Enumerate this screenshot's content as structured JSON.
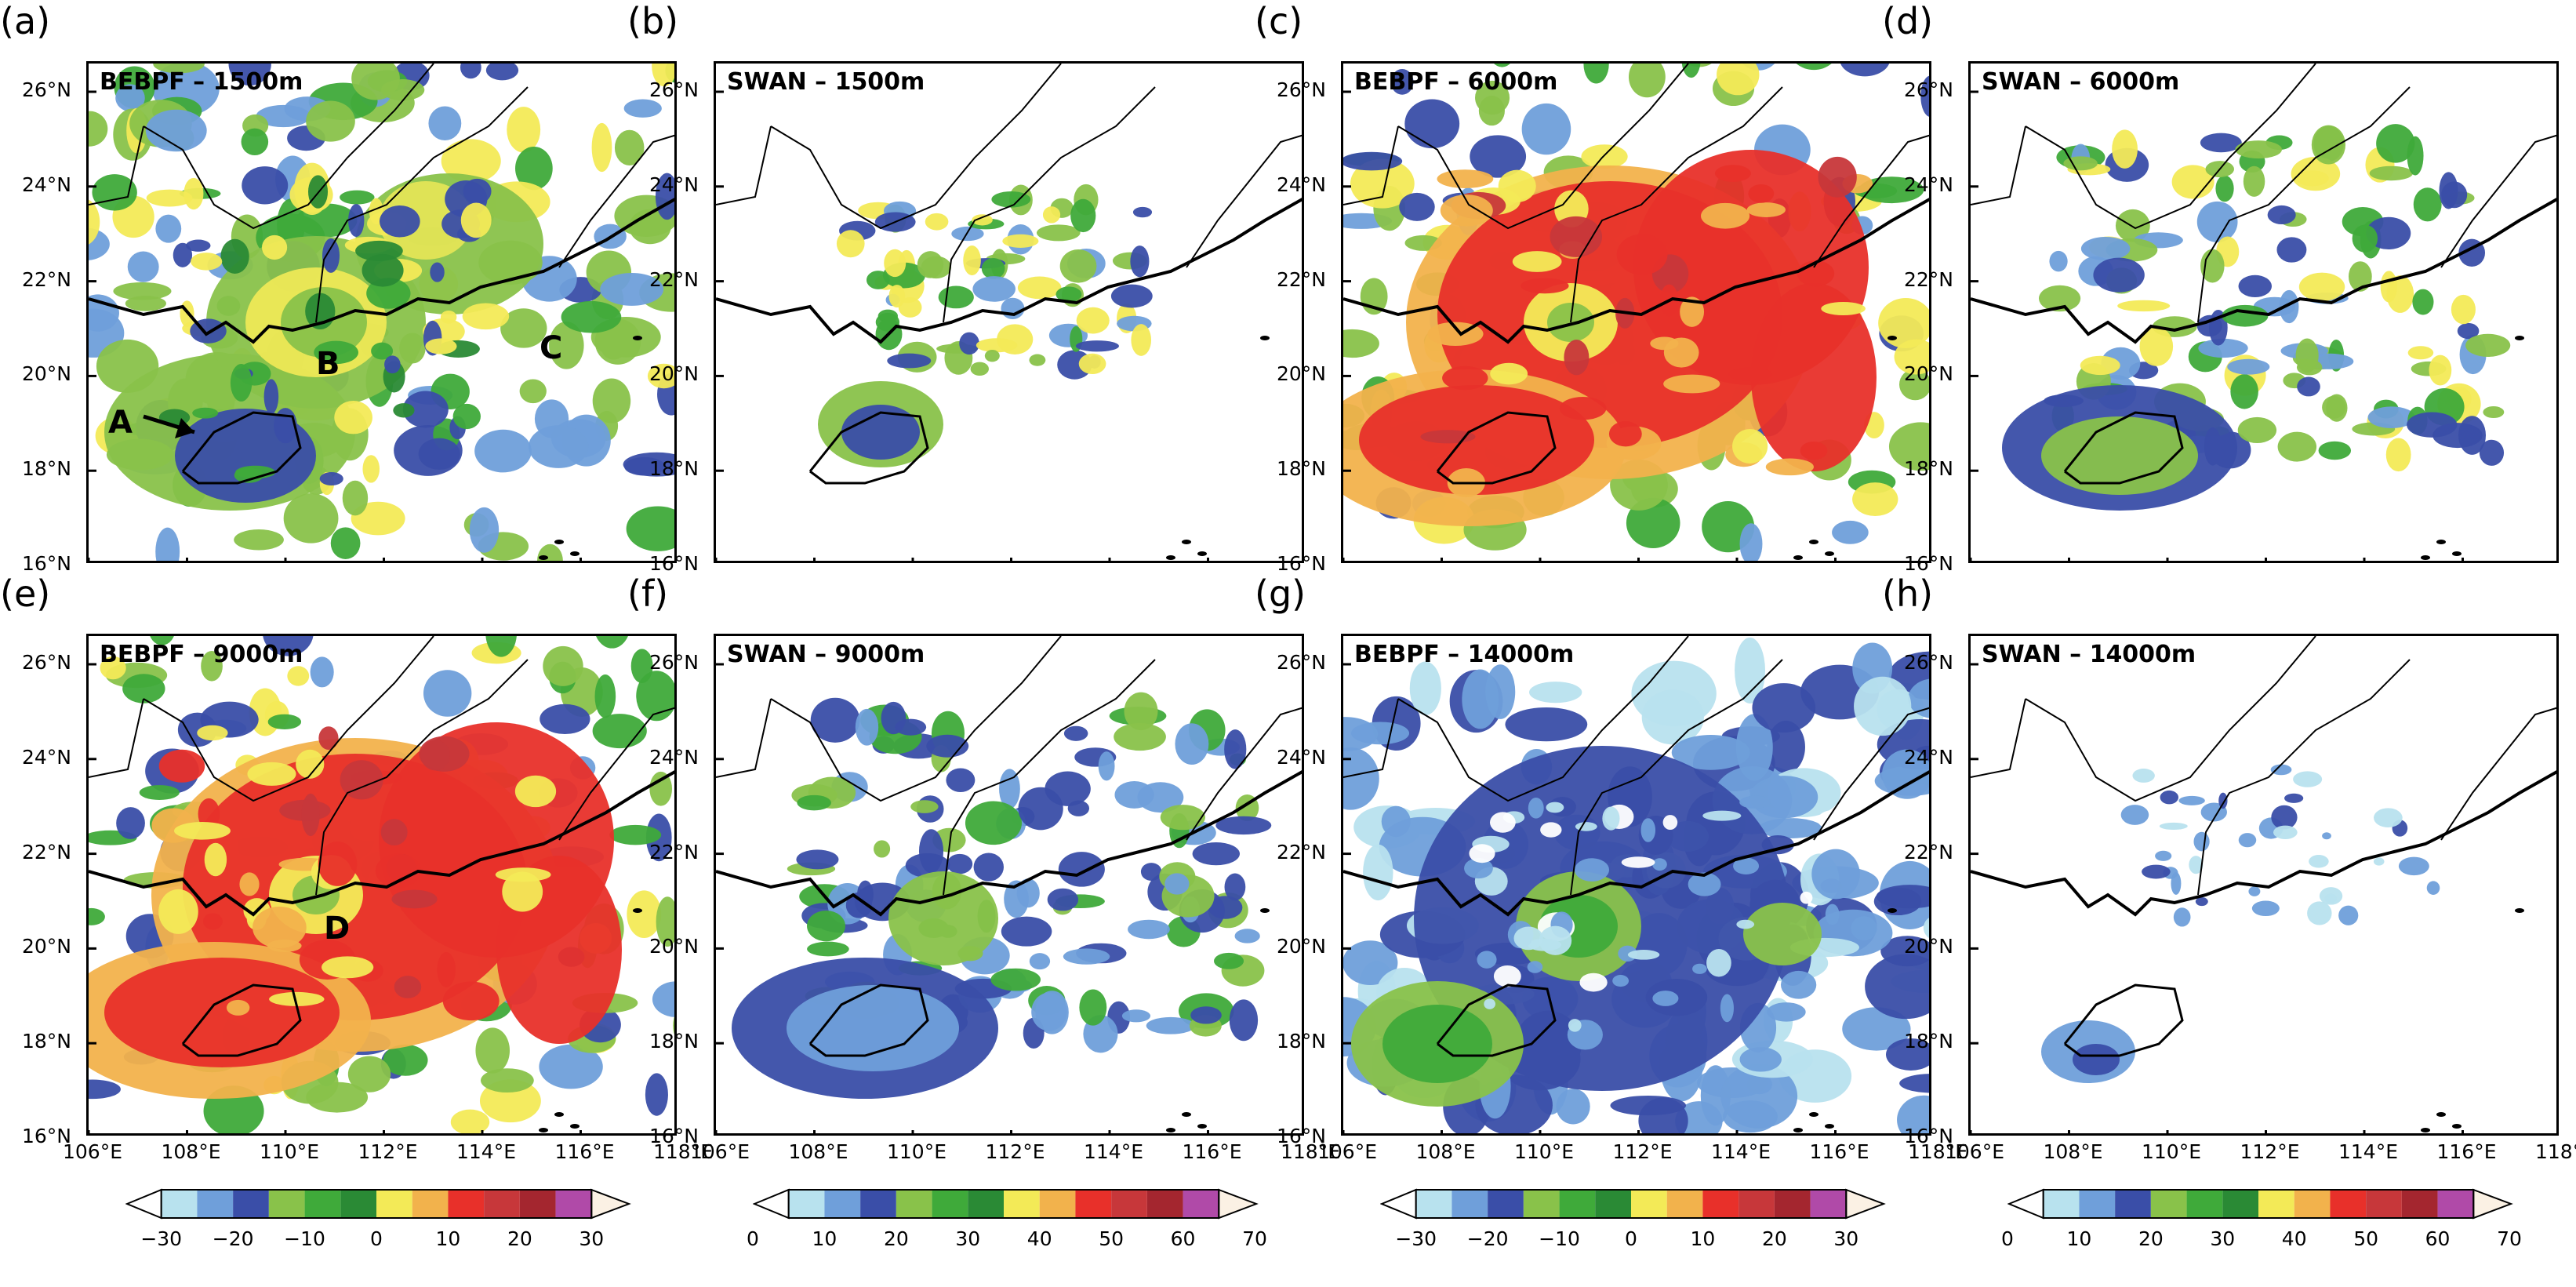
{
  "lat_labels": [
    "26°N",
    "24°N",
    "22°N",
    "20°N",
    "18°N",
    "16°N"
  ],
  "lon_labels": [
    "106°E",
    "108°E",
    "110°E",
    "112°E",
    "114°E",
    "116°E",
    "118°E"
  ],
  "panels": [
    {
      "letter": "(a)",
      "title": "BEBPF – 1500m",
      "palette": "signed",
      "intensity": "medium"
    },
    {
      "letter": "(b)",
      "title": "SWAN – 1500m",
      "palette": "positive",
      "intensity": "sparse"
    },
    {
      "letter": "(c)",
      "title": "BEBPF – 6000m",
      "palette": "signed",
      "intensity": "high"
    },
    {
      "letter": "(d)",
      "title": "SWAN – 6000m",
      "palette": "positive",
      "intensity": "low"
    },
    {
      "letter": "(e)",
      "title": "BEBPF – 9000m",
      "palette": "signed",
      "intensity": "high"
    },
    {
      "letter": "(f)",
      "title": "SWAN – 9000m",
      "palette": "positive",
      "intensity": "low-blue"
    },
    {
      "letter": "(g)",
      "title": "BEBPF – 14000m",
      "palette": "signed",
      "intensity": "blue"
    },
    {
      "letter": "(h)",
      "title": "SWAN – 14000m",
      "palette": "positive",
      "intensity": "very-sparse"
    }
  ],
  "markers": {
    "a": [
      "A",
      "B",
      "C"
    ],
    "e": [
      "D"
    ]
  },
  "colorbars": [
    {
      "kind": "signed",
      "labels": [
        "−30",
        "−20",
        "−10",
        "0",
        "10",
        "20",
        "30"
      ]
    },
    {
      "kind": "positive",
      "labels": [
        "0",
        "10",
        "20",
        "30",
        "40",
        "50",
        "60",
        "70"
      ]
    },
    {
      "kind": "signed",
      "labels": [
        "−30",
        "−20",
        "−10",
        "0",
        "10",
        "20",
        "30"
      ]
    },
    {
      "kind": "positive",
      "labels": [
        "0",
        "10",
        "20",
        "30",
        "40",
        "50",
        "60",
        "70"
      ]
    }
  ],
  "colors": {
    "scale": [
      "#ffffff",
      "#b8e2ee",
      "#6f9fda",
      "#3a4ea8",
      "#89c24a",
      "#3faa3a",
      "#2a8a35",
      "#f3ea57",
      "#f2b24c",
      "#e8302a",
      "#c7373a",
      "#a4262f",
      "#b04aa8",
      "#fbf1e4"
    ]
  }
}
